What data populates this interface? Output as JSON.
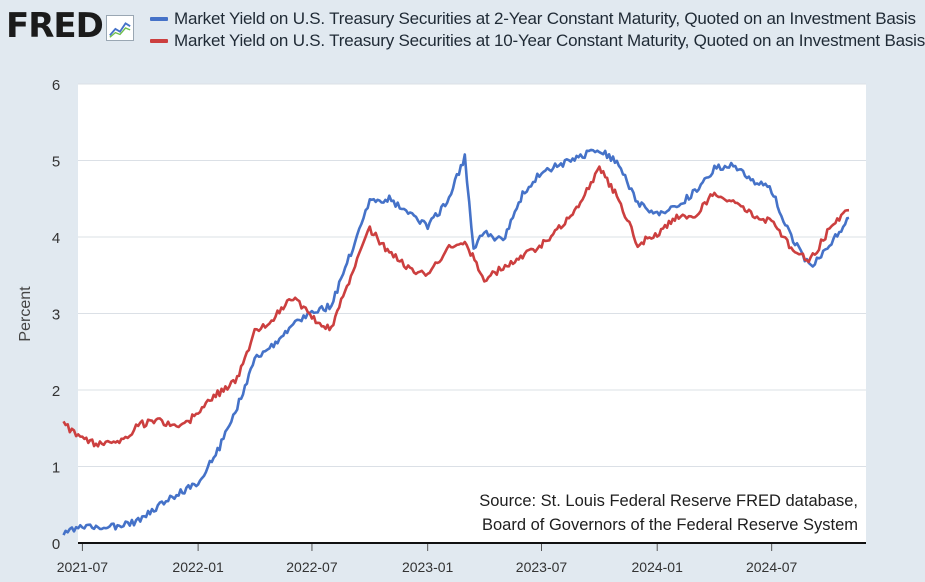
{
  "logo": {
    "text": "FRED",
    "icon": "line-graph-icon"
  },
  "chart_data": {
    "type": "line",
    "title": "",
    "ylabel": "Percent",
    "xlabel": "",
    "ylim": [
      0,
      6
    ],
    "y_ticks": [
      "0",
      "1",
      "2",
      "3",
      "4",
      "5",
      "6"
    ],
    "x_ticks": [
      "2021-07",
      "2022-01",
      "2022-07",
      "2023-01",
      "2023-07",
      "2024-01",
      "2024-07"
    ],
    "x_range": [
      "2021-06",
      "2024-11"
    ],
    "grid": "horizontal",
    "background": "#ffffff",
    "series": [
      {
        "name": "Market Yield on U.S. Treasury Securities at 2-Year Constant Maturity, Quoted on an Investment Basis",
        "color": "#4572c8",
        "points": [
          [
            "2021-06-01",
            0.12
          ],
          [
            "2021-07-01",
            0.22
          ],
          [
            "2021-08-01",
            0.2
          ],
          [
            "2021-09-01",
            0.22
          ],
          [
            "2021-10-01",
            0.3
          ],
          [
            "2021-11-01",
            0.5
          ],
          [
            "2021-12-01",
            0.65
          ],
          [
            "2022-01-01",
            0.78
          ],
          [
            "2022-02-01",
            1.2
          ],
          [
            "2022-03-01",
            1.7
          ],
          [
            "2022-04-01",
            2.4
          ],
          [
            "2022-05-01",
            2.6
          ],
          [
            "2022-06-01",
            2.85
          ],
          [
            "2022-07-01",
            3.0
          ],
          [
            "2022-08-01",
            3.1
          ],
          [
            "2022-09-01",
            3.8
          ],
          [
            "2022-10-01",
            4.45
          ],
          [
            "2022-11-01",
            4.5
          ],
          [
            "2022-12-01",
            4.3
          ],
          [
            "2023-01-01",
            4.15
          ],
          [
            "2023-02-01",
            4.45
          ],
          [
            "2023-03-01",
            5.05
          ],
          [
            "2023-03-15",
            3.85
          ],
          [
            "2023-04-01",
            4.05
          ],
          [
            "2023-05-01",
            3.95
          ],
          [
            "2023-06-01",
            4.55
          ],
          [
            "2023-07-01",
            4.85
          ],
          [
            "2023-08-01",
            4.95
          ],
          [
            "2023-09-01",
            5.05
          ],
          [
            "2023-10-01",
            5.15
          ],
          [
            "2023-11-01",
            4.95
          ],
          [
            "2023-12-01",
            4.45
          ],
          [
            "2024-01-01",
            4.3
          ],
          [
            "2024-02-01",
            4.4
          ],
          [
            "2024-03-01",
            4.6
          ],
          [
            "2024-04-01",
            4.9
          ],
          [
            "2024-05-01",
            4.95
          ],
          [
            "2024-06-01",
            4.75
          ],
          [
            "2024-07-01",
            4.6
          ],
          [
            "2024-08-01",
            4.0
          ],
          [
            "2024-09-01",
            3.6
          ],
          [
            "2024-10-01",
            3.9
          ],
          [
            "2024-11-01",
            4.25
          ]
        ]
      },
      {
        "name": "Market Yield on U.S. Treasury Securities at 10-Year Constant Maturity, Quoted on an Investment Basis",
        "color": "#cc3f3f",
        "points": [
          [
            "2021-06-01",
            1.55
          ],
          [
            "2021-07-01",
            1.35
          ],
          [
            "2021-08-01",
            1.28
          ],
          [
            "2021-09-01",
            1.35
          ],
          [
            "2021-10-01",
            1.55
          ],
          [
            "2021-11-01",
            1.6
          ],
          [
            "2021-12-01",
            1.48
          ],
          [
            "2022-01-01",
            1.7
          ],
          [
            "2022-02-01",
            1.95
          ],
          [
            "2022-03-01",
            2.1
          ],
          [
            "2022-04-01",
            2.75
          ],
          [
            "2022-05-01",
            2.95
          ],
          [
            "2022-06-01",
            3.2
          ],
          [
            "2022-07-01",
            2.95
          ],
          [
            "2022-08-01",
            2.8
          ],
          [
            "2022-09-01",
            3.5
          ],
          [
            "2022-10-01",
            4.1
          ],
          [
            "2022-11-01",
            3.8
          ],
          [
            "2022-12-01",
            3.6
          ],
          [
            "2023-01-01",
            3.5
          ],
          [
            "2023-02-01",
            3.85
          ],
          [
            "2023-03-01",
            3.95
          ],
          [
            "2023-04-01",
            3.45
          ],
          [
            "2023-05-01",
            3.6
          ],
          [
            "2023-06-01",
            3.75
          ],
          [
            "2023-07-01",
            3.9
          ],
          [
            "2023-08-01",
            4.15
          ],
          [
            "2023-09-01",
            4.45
          ],
          [
            "2023-10-01",
            4.9
          ],
          [
            "2023-11-01",
            4.5
          ],
          [
            "2023-12-01",
            3.9
          ],
          [
            "2024-01-01",
            4.05
          ],
          [
            "2024-02-01",
            4.25
          ],
          [
            "2024-03-01",
            4.25
          ],
          [
            "2024-04-01",
            4.6
          ],
          [
            "2024-05-01",
            4.45
          ],
          [
            "2024-06-01",
            4.3
          ],
          [
            "2024-07-01",
            4.2
          ],
          [
            "2024-08-01",
            3.85
          ],
          [
            "2024-09-01",
            3.7
          ],
          [
            "2024-10-01",
            4.1
          ],
          [
            "2024-11-01",
            4.35
          ]
        ]
      }
    ]
  },
  "source_lines": [
    "Source: St. Louis Federal Reserve FRED database,",
    "Board of Governors of the Federal Reserve System"
  ]
}
